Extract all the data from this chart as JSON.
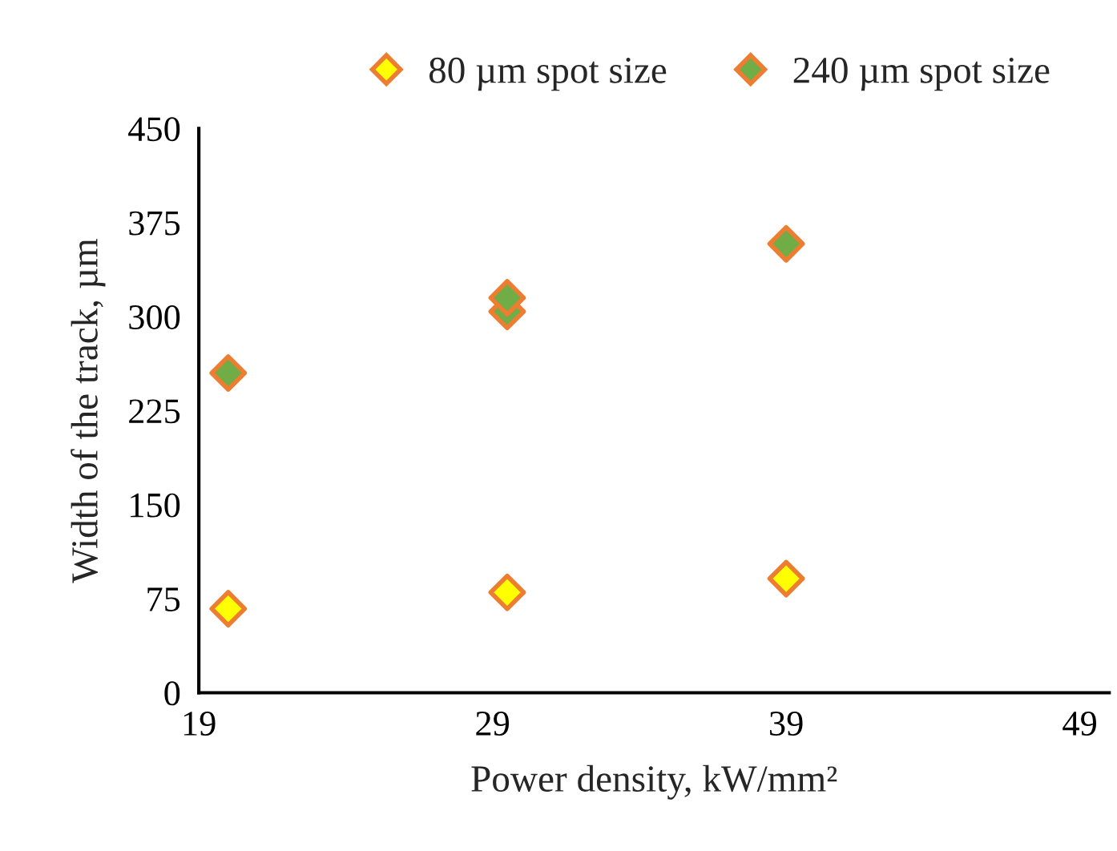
{
  "chart_data": {
    "type": "scatter",
    "xlabel": "Power density, kW/mm²",
    "ylabel": "Width of the track, µm",
    "series": [
      {
        "name": "80 µm spot size",
        "color": "#ffff00",
        "x": [
          20,
          29.5,
          39
        ],
        "values": [
          67,
          80,
          91
        ]
      },
      {
        "name": "240 µm spot size",
        "color": "#70ad47",
        "x": [
          20,
          29.5,
          29.5,
          39
        ],
        "values": [
          255,
          304,
          315,
          358
        ]
      }
    ],
    "xlim": [
      19,
      50
    ],
    "xticks": [
      19,
      29,
      39,
      49
    ],
    "ylim": [
      0,
      450
    ],
    "yticks": [
      0,
      75,
      150,
      225,
      300,
      375,
      450
    ],
    "marker": "diamond",
    "grid": false,
    "legend": "top"
  }
}
